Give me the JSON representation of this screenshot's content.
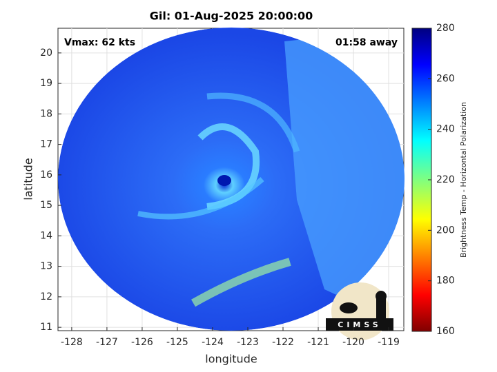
{
  "chart_data": {
    "type": "map",
    "title": "Gil: 01-Aug-2025 20:00:00",
    "annotations": [
      "Vmax: 62 kts",
      "01:58 away"
    ],
    "x_label": "longitude",
    "y_label": "latitude",
    "xlim": [
      -128.39,
      -118.57
    ],
    "ylim": [
      10.89,
      20.81
    ],
    "xticks": [
      -128,
      -127,
      -126,
      -125,
      -124,
      -123,
      -122,
      -121,
      -120,
      -119
    ],
    "yticks": [
      11,
      12,
      13,
      14,
      15,
      16,
      17,
      18,
      19,
      20
    ],
    "grid": true,
    "colorbar": {
      "label": "Brightness Temp - Horizontal Polarization",
      "lim": [
        160,
        280
      ],
      "ticks": [
        160,
        180,
        200,
        220,
        240,
        260,
        280
      ]
    },
    "logo_text": "CIMSS"
  }
}
